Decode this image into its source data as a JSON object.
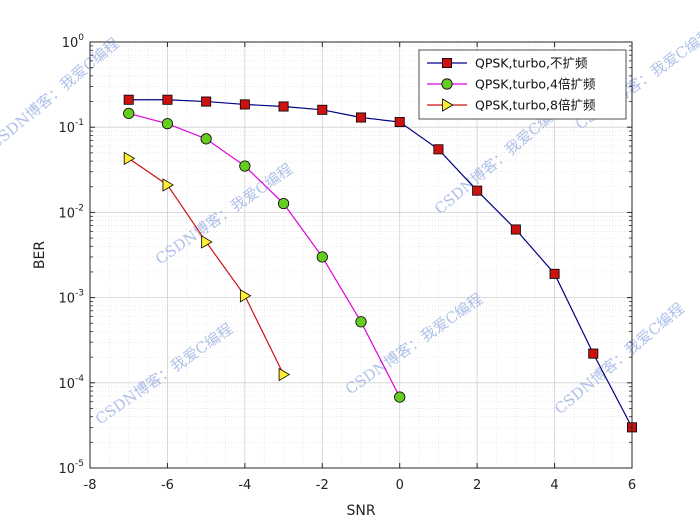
{
  "chart_data": {
    "type": "line",
    "xlabel": "SNR",
    "ylabel": "BER",
    "xlim": [
      -8,
      6
    ],
    "ylim": [
      1e-05,
      1
    ],
    "yscale": "log",
    "grid": true,
    "legend_position": "top-right",
    "x_ticks": [
      "-8",
      "-6",
      "-4",
      "-2",
      "0",
      "2",
      "4",
      "6"
    ],
    "y_ticks": [
      {
        "base": "10",
        "exp": "-5"
      },
      {
        "base": "10",
        "exp": "-4"
      },
      {
        "base": "10",
        "exp": "-3"
      },
      {
        "base": "10",
        "exp": "-2"
      },
      {
        "base": "10",
        "exp": "-1"
      },
      {
        "base": "10",
        "exp": "0"
      }
    ],
    "series": [
      {
        "name": "QPSK,turbo,不扩频",
        "color": "#000080",
        "marker": "square",
        "marker_color": "#cc1111",
        "x": [
          -7,
          -6,
          -5,
          -4,
          -3,
          -2,
          -1,
          0,
          1,
          2,
          3,
          4,
          5,
          6
        ],
        "y": [
          0.21,
          0.21,
          0.2,
          0.185,
          0.175,
          0.16,
          0.13,
          0.115,
          0.055,
          0.018,
          0.0063,
          0.0019,
          0.00022,
          3e-05
        ]
      },
      {
        "name": "QPSK,turbo,4倍扩频",
        "color": "#dd00dd",
        "marker": "circle",
        "marker_color": "#66cc22",
        "x": [
          -7,
          -6,
          -5,
          -4,
          -3,
          -2,
          -1,
          0
        ],
        "y": [
          0.145,
          0.11,
          0.073,
          0.035,
          0.0127,
          0.003,
          0.00052,
          6.8e-05
        ]
      },
      {
        "name": "QPSK,turbo,8倍扩频",
        "color": "#cc1111",
        "marker": "triangle-right",
        "marker_color": "#ffee33",
        "x": [
          -7,
          -6,
          -5,
          -4,
          -3
        ],
        "y": [
          0.043,
          0.021,
          0.0045,
          0.00105,
          0.000125
        ]
      }
    ]
  },
  "watermark": "CSDN博客：我爱C编程"
}
